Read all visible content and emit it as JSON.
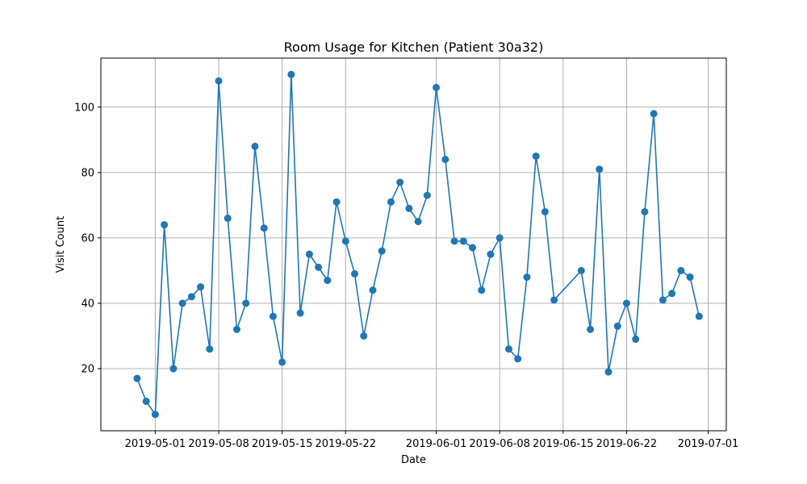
{
  "chart_data": {
    "type": "line",
    "title": "Room Usage for Kitchen (Patient 30a32)",
    "xlabel": "Date",
    "ylabel": "Visit Count",
    "grid": true,
    "marker": "circle",
    "series_color": "#1f77b4",
    "x_ticks": [
      "2019-05-01",
      "2019-05-08",
      "2019-05-15",
      "2019-05-22",
      "2019-06-01",
      "2019-06-08",
      "2019-06-15",
      "2019-06-22",
      "2019-07-01"
    ],
    "y_ticks": [
      20,
      40,
      60,
      80,
      100
    ],
    "xlim": [
      "2019-04-25",
      "2019-07-03"
    ],
    "ylim": [
      1,
      115
    ],
    "series": [
      {
        "x": [
          "2019-04-29",
          "2019-04-30",
          "2019-05-01",
          "2019-05-02",
          "2019-05-03",
          "2019-05-04",
          "2019-05-05",
          "2019-05-06",
          "2019-05-07",
          "2019-05-08",
          "2019-05-09",
          "2019-05-10",
          "2019-05-11",
          "2019-05-12",
          "2019-05-13",
          "2019-05-14",
          "2019-05-15",
          "2019-05-16",
          "2019-05-17",
          "2019-05-18",
          "2019-05-19",
          "2019-05-20",
          "2019-05-21",
          "2019-05-22",
          "2019-05-23",
          "2019-05-24",
          "2019-05-25",
          "2019-05-26",
          "2019-05-27",
          "2019-05-28",
          "2019-05-29",
          "2019-05-30",
          "2019-05-31",
          "2019-06-01",
          "2019-06-02",
          "2019-06-03",
          "2019-06-04",
          "2019-06-05",
          "2019-06-06",
          "2019-06-07",
          "2019-06-08",
          "2019-06-09",
          "2019-06-10",
          "2019-06-11",
          "2019-06-12",
          "2019-06-13",
          "2019-06-14",
          "2019-06-17",
          "2019-06-18",
          "2019-06-19",
          "2019-06-20",
          "2019-06-21",
          "2019-06-22",
          "2019-06-23",
          "2019-06-24",
          "2019-06-25",
          "2019-06-26",
          "2019-06-27",
          "2019-06-28",
          "2019-06-29",
          "2019-06-30"
        ],
        "y": [
          17,
          10,
          6,
          64,
          20,
          40,
          42,
          45,
          26,
          108,
          66,
          32,
          40,
          88,
          63,
          36,
          22,
          110,
          37,
          55,
          51,
          47,
          71,
          59,
          49,
          30,
          44,
          56,
          71,
          77,
          69,
          65,
          73,
          106,
          84,
          59,
          59,
          57,
          44,
          55,
          60,
          26,
          23,
          48,
          85,
          68,
          41,
          50,
          32,
          81,
          19,
          33,
          40,
          29,
          68,
          98,
          41,
          43,
          50,
          48,
          36
        ]
      }
    ]
  }
}
